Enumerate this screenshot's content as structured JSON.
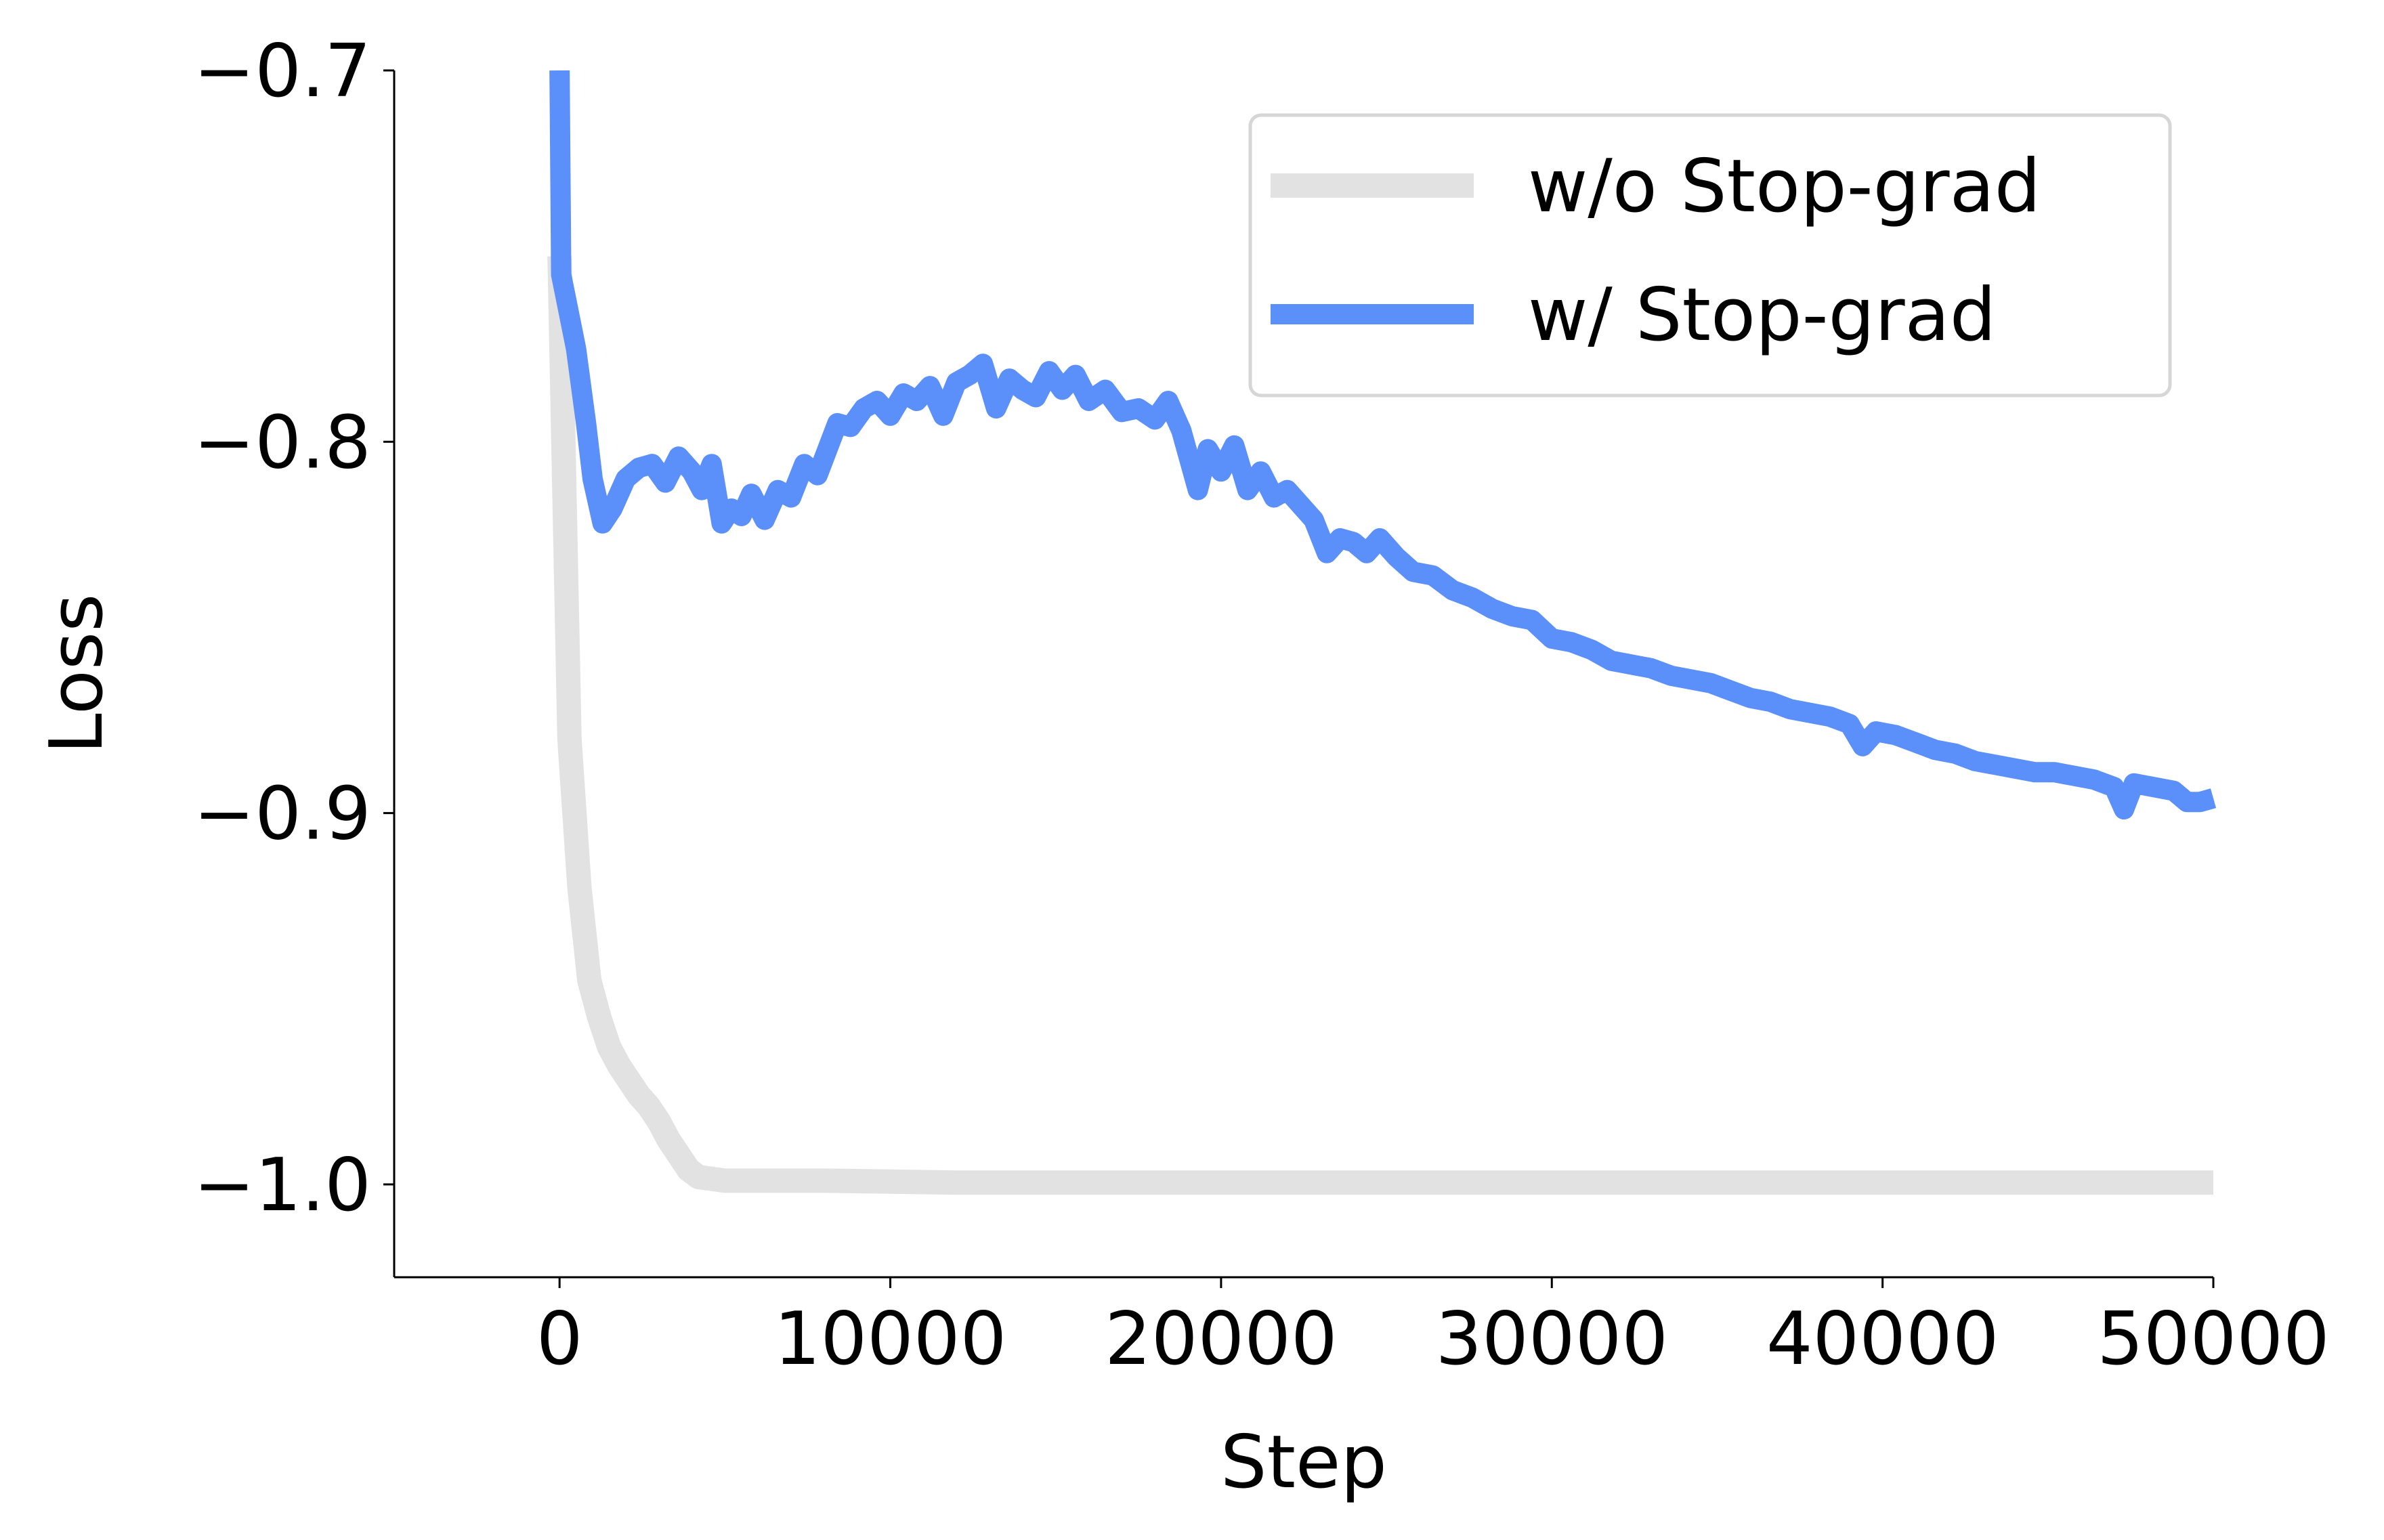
{
  "chart_data": {
    "type": "line",
    "title": "",
    "xlabel": "Step",
    "ylabel": "Loss",
    "xlim": [
      -5000,
      50000
    ],
    "ylim": [
      -1.025,
      -0.7
    ],
    "xticks": [
      0,
      10000,
      20000,
      30000,
      40000,
      50000
    ],
    "xtick_labels": [
      "0",
      "10000",
      "20000",
      "30000",
      "40000",
      "50000"
    ],
    "yticks": [
      -1.0,
      -0.9,
      -0.8,
      -0.7
    ],
    "ytick_labels": [
      "−1.0",
      "−0.9",
      "−0.8",
      "−0.7"
    ],
    "grid": false,
    "legend_position": "upper right",
    "series": [
      {
        "name": "w/o Stop-grad",
        "color": "#e2e2e2",
        "points": [
          [
            0,
            -0.75
          ],
          [
            300,
            -0.88
          ],
          [
            600,
            -0.92
          ],
          [
            900,
            -0.945
          ],
          [
            1200,
            -0.955
          ],
          [
            1500,
            -0.963
          ],
          [
            1800,
            -0.968
          ],
          [
            2100,
            -0.972
          ],
          [
            2400,
            -0.976
          ],
          [
            2700,
            -0.979
          ],
          [
            3000,
            -0.983
          ],
          [
            3300,
            -0.988
          ],
          [
            3600,
            -0.992
          ],
          [
            3900,
            -0.996
          ],
          [
            4200,
            -0.998
          ],
          [
            4600,
            -0.9985
          ],
          [
            5000,
            -0.999
          ],
          [
            8000,
            -0.999
          ],
          [
            12000,
            -0.9995
          ],
          [
            20000,
            -0.9995
          ],
          [
            30000,
            -0.9995
          ],
          [
            40000,
            -0.9995
          ],
          [
            50000,
            -0.9995
          ]
        ]
      },
      {
        "name": "w/ Stop-grad",
        "color": "#5b8ff9",
        "points": [
          [
            0,
            -0.7
          ],
          [
            50,
            -0.755
          ],
          [
            500,
            -0.775
          ],
          [
            800,
            -0.795
          ],
          [
            1000,
            -0.81
          ],
          [
            1300,
            -0.822
          ],
          [
            1600,
            -0.818
          ],
          [
            2000,
            -0.81
          ],
          [
            2400,
            -0.807
          ],
          [
            2800,
            -0.806
          ],
          [
            3200,
            -0.811
          ],
          [
            3600,
            -0.804
          ],
          [
            4000,
            -0.808
          ],
          [
            4300,
            -0.813
          ],
          [
            4600,
            -0.806
          ],
          [
            4900,
            -0.822
          ],
          [
            5200,
            -0.818
          ],
          [
            5500,
            -0.82
          ],
          [
            5800,
            -0.814
          ],
          [
            6200,
            -0.821
          ],
          [
            6600,
            -0.813
          ],
          [
            7000,
            -0.815
          ],
          [
            7400,
            -0.806
          ],
          [
            7800,
            -0.809
          ],
          [
            8100,
            -0.802
          ],
          [
            8400,
            -0.795
          ],
          [
            8800,
            -0.796
          ],
          [
            9200,
            -0.791
          ],
          [
            9600,
            -0.789
          ],
          [
            10000,
            -0.793
          ],
          [
            10400,
            -0.787
          ],
          [
            10800,
            -0.789
          ],
          [
            11200,
            -0.785
          ],
          [
            11600,
            -0.793
          ],
          [
            12000,
            -0.784
          ],
          [
            12400,
            -0.782
          ],
          [
            12800,
            -0.779
          ],
          [
            13200,
            -0.791
          ],
          [
            13600,
            -0.783
          ],
          [
            14000,
            -0.786
          ],
          [
            14400,
            -0.788
          ],
          [
            14800,
            -0.781
          ],
          [
            15200,
            -0.786
          ],
          [
            15600,
            -0.782
          ],
          [
            16000,
            -0.789
          ],
          [
            16500,
            -0.786
          ],
          [
            17000,
            -0.792
          ],
          [
            17500,
            -0.791
          ],
          [
            18000,
            -0.794
          ],
          [
            18400,
            -0.789
          ],
          [
            18800,
            -0.797
          ],
          [
            19300,
            -0.813
          ],
          [
            19600,
            -0.802
          ],
          [
            20000,
            -0.808
          ],
          [
            20400,
            -0.801
          ],
          [
            20800,
            -0.813
          ],
          [
            21200,
            -0.808
          ],
          [
            21600,
            -0.815
          ],
          [
            22000,
            -0.813
          ],
          [
            22400,
            -0.817
          ],
          [
            22800,
            -0.821
          ],
          [
            23200,
            -0.83
          ],
          [
            23600,
            -0.826
          ],
          [
            24000,
            -0.827
          ],
          [
            24400,
            -0.83
          ],
          [
            24800,
            -0.826
          ],
          [
            25300,
            -0.831
          ],
          [
            25800,
            -0.835
          ],
          [
            26400,
            -0.836
          ],
          [
            27000,
            -0.84
          ],
          [
            27600,
            -0.842
          ],
          [
            28200,
            -0.845
          ],
          [
            28800,
            -0.847
          ],
          [
            29400,
            -0.848
          ],
          [
            30000,
            -0.853
          ],
          [
            30600,
            -0.854
          ],
          [
            31200,
            -0.856
          ],
          [
            31800,
            -0.859
          ],
          [
            32400,
            -0.86
          ],
          [
            33000,
            -0.861
          ],
          [
            33600,
            -0.863
          ],
          [
            34200,
            -0.864
          ],
          [
            34800,
            -0.865
          ],
          [
            35400,
            -0.867
          ],
          [
            36000,
            -0.869
          ],
          [
            36600,
            -0.87
          ],
          [
            37200,
            -0.872
          ],
          [
            37800,
            -0.873
          ],
          [
            38400,
            -0.874
          ],
          [
            39000,
            -0.876
          ],
          [
            39400,
            -0.882
          ],
          [
            39800,
            -0.878
          ],
          [
            40400,
            -0.879
          ],
          [
            41000,
            -0.881
          ],
          [
            41600,
            -0.883
          ],
          [
            42200,
            -0.884
          ],
          [
            42800,
            -0.886
          ],
          [
            43400,
            -0.887
          ],
          [
            44000,
            -0.888
          ],
          [
            44600,
            -0.889
          ],
          [
            45200,
            -0.889
          ],
          [
            45800,
            -0.89
          ],
          [
            46400,
            -0.891
          ],
          [
            47000,
            -0.893
          ],
          [
            47300,
            -0.899
          ],
          [
            47600,
            -0.892
          ],
          [
            48200,
            -0.893
          ],
          [
            48800,
            -0.894
          ],
          [
            49200,
            -0.897
          ],
          [
            49600,
            -0.897
          ],
          [
            50000,
            -0.896
          ]
        ]
      }
    ]
  }
}
